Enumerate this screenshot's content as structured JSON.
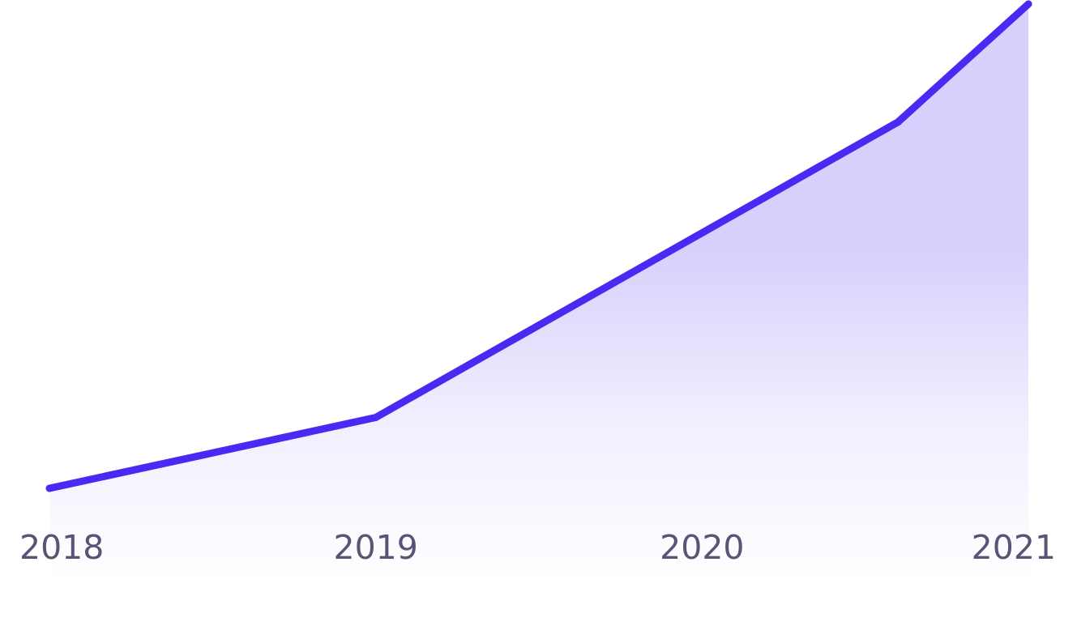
{
  "chart_data": {
    "type": "area",
    "title": "",
    "xlabel": "",
    "ylabel": "",
    "x": [
      2018,
      2019,
      2020.6,
      2021
    ],
    "series": [
      {
        "values": [
          1.0,
          1.6,
          4.1,
          5.1
        ]
      }
    ],
    "x_tick_labels": [
      "2018",
      "2019",
      "2020",
      "2021"
    ],
    "x_tick_values": [
      2018,
      2019,
      2020,
      2021
    ],
    "xlim": [
      2018,
      2021
    ],
    "ylim": [
      0,
      5.1
    ],
    "grid": false,
    "legend": "none",
    "colors": {
      "line": "#4a2af2",
      "fill": "#d6d0fc",
      "tick_label": "#595475",
      "background": "#ffffff"
    }
  }
}
